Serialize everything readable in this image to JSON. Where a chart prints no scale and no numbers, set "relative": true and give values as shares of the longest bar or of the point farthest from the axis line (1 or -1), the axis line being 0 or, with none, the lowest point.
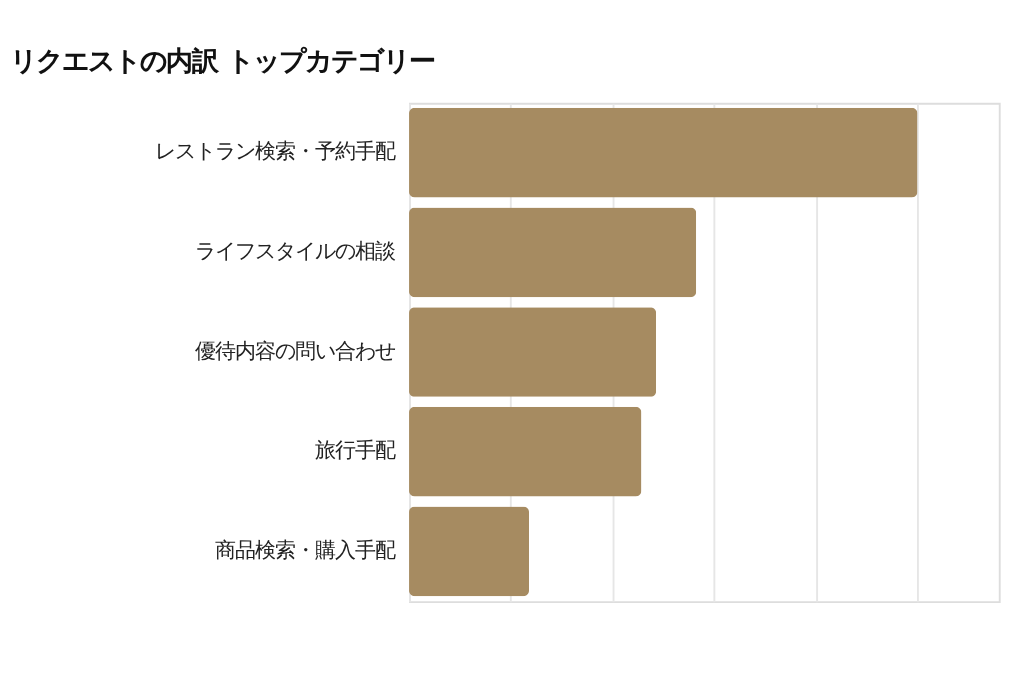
{
  "chart_data": {
    "type": "bar",
    "orientation": "horizontal",
    "relative": true,
    "title": "リクエストの内訳 トップカテゴリー",
    "categories": [
      "レストラン検索・予約手配",
      "ライフスタイルの相談",
      "優待内容の問い合わせ",
      "旅行手配",
      "商品検索・購入手配"
    ],
    "values": [
      1,
      0.565,
      0.486,
      0.457,
      0.236
    ],
    "color": "#a68b61",
    "grid": "x"
  }
}
